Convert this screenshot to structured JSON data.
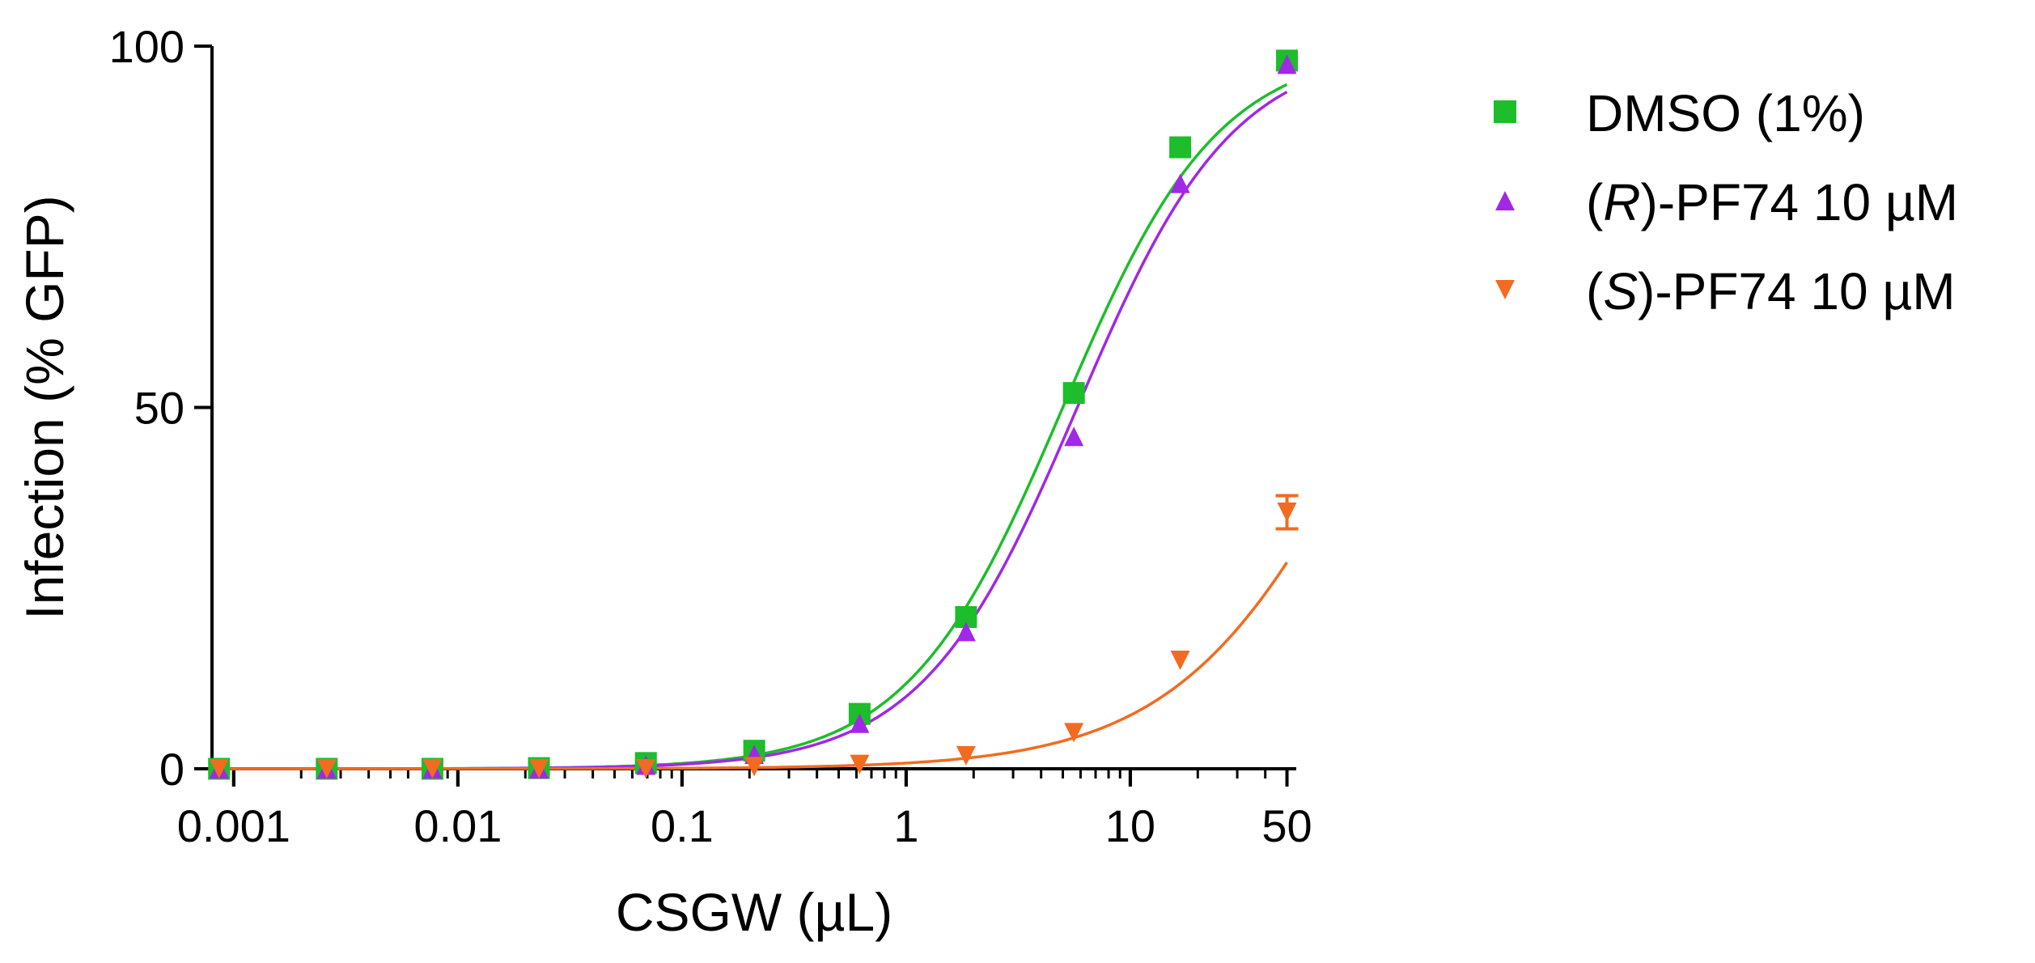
{
  "chart_data": {
    "type": "scatter",
    "xscale": "log",
    "xlabel": "CSGW (µL)",
    "ylabel": "Infection (% GFP)",
    "xlim": [
      0.0008,
      55
    ],
    "ylim": [
      0,
      100
    ],
    "xticks": [
      {
        "value": 0.001,
        "label": "0.001"
      },
      {
        "value": 0.01,
        "label": "0.01"
      },
      {
        "value": 0.1,
        "label": "0.1"
      },
      {
        "value": 1,
        "label": "1"
      },
      {
        "value": 10,
        "label": "10"
      },
      {
        "value": 50,
        "label": "50"
      }
    ],
    "yticks": [
      {
        "value": 0,
        "label": "0"
      },
      {
        "value": 50,
        "label": "50"
      },
      {
        "value": 100,
        "label": "100"
      }
    ],
    "x": [
      0.00086,
      0.0026,
      0.0077,
      0.023,
      0.069,
      0.21,
      0.62,
      1.85,
      5.6,
      16.7,
      50
    ],
    "series": [
      {
        "name": "DMSO (1%)",
        "legend_parts": [
          {
            "text": "DMSO (1%)",
            "italic": false
          }
        ],
        "marker": "square",
        "color": "#1dbd2b",
        "values": [
          0,
          0,
          0,
          0.1,
          0.8,
          2.5,
          7.6,
          21,
          52,
          86,
          98
        ],
        "fit": {
          "bottom": 0,
          "top": 100,
          "ec50": 5.0,
          "hill": 1.25
        }
      },
      {
        "name": "(R)-PF74 10 µM",
        "legend_parts": [
          {
            "text": "(",
            "italic": false
          },
          {
            "text": "R",
            "italic": true
          },
          {
            "text": ")-PF74 10 µM",
            "italic": false
          }
        ],
        "marker": "triangle-up",
        "color": "#a028e6",
        "values": [
          0,
          0,
          0,
          0,
          0.5,
          2,
          6.3,
          19,
          46,
          81,
          97.5
        ],
        "fit": {
          "bottom": 0,
          "top": 100,
          "ec50": 5.8,
          "hill": 1.25
        }
      },
      {
        "name": "(S)-PF74 10 µM",
        "legend_parts": [
          {
            "text": "(",
            "italic": false
          },
          {
            "text": "S",
            "italic": true
          },
          {
            "text": ")-PF74 10 µM",
            "italic": false
          }
        ],
        "marker": "triangle-down",
        "color": "#f26b21",
        "values": [
          0,
          0,
          0,
          0,
          0,
          0.3,
          0.6,
          1.8,
          5,
          15,
          35.5
        ],
        "errors": [
          0,
          0,
          0,
          0,
          0,
          0,
          0,
          0,
          0,
          0,
          2.3
        ],
        "fit": {
          "bottom": 0,
          "top": 100,
          "ec50": 125,
          "hill": 1.0
        }
      }
    ]
  }
}
